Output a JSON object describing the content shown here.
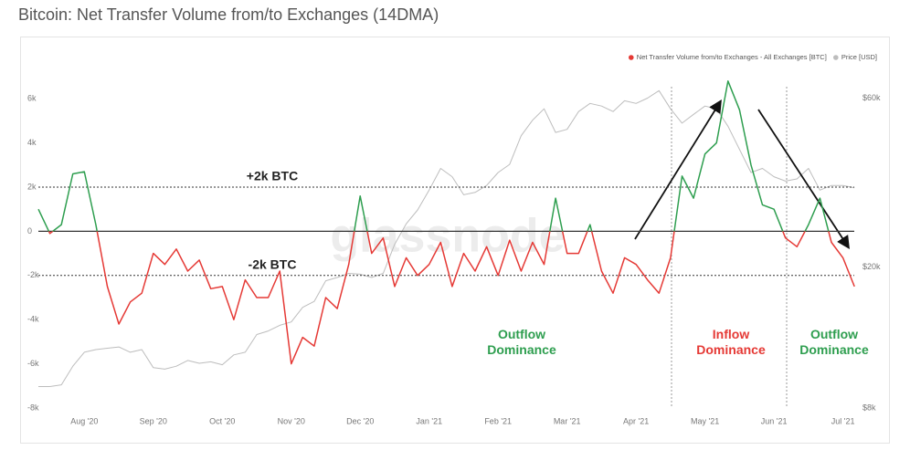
{
  "chart_data": {
    "type": "line",
    "title": "Bitcoin: Net Transfer Volume from/to Exchanges (14DMA)",
    "watermark": "glassnode",
    "categories": [
      null,
      null,
      null,
      null,
      "Aug '20",
      null,
      null,
      null,
      null,
      null,
      "Sep '20",
      null,
      null,
      null,
      null,
      null,
      "Oct '20",
      null,
      null,
      null,
      null,
      null,
      "Nov '20",
      null,
      null,
      null,
      null,
      null,
      "Dec '20",
      null,
      null,
      null,
      null,
      null,
      "Jan '21",
      null,
      null,
      null,
      null,
      null,
      "Feb '21",
      null,
      null,
      null,
      null,
      null,
      "Mar '21",
      null,
      null,
      null,
      null,
      null,
      "Apr '21",
      null,
      null,
      null,
      null,
      null,
      "May '21",
      null,
      null,
      null,
      null,
      null,
      "Jun '21",
      null,
      null,
      null,
      null,
      null,
      "Jul '21",
      null
    ],
    "series": [
      {
        "name": "Net Transfer Volume from/to Exchanges - All Exchanges [BTC]",
        "color": "#e53935",
        "color_positive": "#2e9e4f",
        "values": [
          1000,
          -100,
          300,
          2600,
          2700,
          300,
          -2500,
          -4200,
          -3200,
          -2800,
          -1000,
          -1500,
          -800,
          -1800,
          -1300,
          -2600,
          -2500,
          -4000,
          -2200,
          -3000,
          -3000,
          -1800,
          -6000,
          -4800,
          -5200,
          -3000,
          -3500,
          -1500,
          1600,
          -1000,
          -300,
          -2500,
          -1200,
          -2000,
          -1500,
          -500,
          -2500,
          -1000,
          -1800,
          -700,
          -2000,
          -400,
          -1800,
          -500,
          -1500,
          1500,
          -1000,
          -1000,
          300,
          -1800,
          -2800,
          -1200,
          -1500,
          -2200,
          -2800,
          -1200,
          2500,
          1500,
          3500,
          4000,
          6800,
          5500,
          3000,
          1200,
          1000,
          -300,
          -700,
          300,
          1500,
          -500,
          -1200,
          -2500
        ]
      },
      {
        "name": "Price [USD]",
        "color": "#bdbdbd",
        "axis": "y2",
        "values": [
          9200,
          9200,
          9300,
          10500,
          11500,
          11700,
          11800,
          11900,
          11500,
          11700,
          10400,
          10300,
          10500,
          10900,
          10700,
          10800,
          10600,
          11300,
          11500,
          12900,
          13200,
          13700,
          14000,
          15400,
          16000,
          18300,
          18700,
          19200,
          19100,
          18700,
          19200,
          23200,
          26500,
          29000,
          33000,
          38000,
          36000,
          32000,
          32500,
          34000,
          37000,
          39000,
          47000,
          52000,
          56000,
          48000,
          49000,
          55000,
          58000,
          57000,
          55000,
          59000,
          58000,
          60000,
          63000,
          56000,
          51000,
          54000,
          57000,
          56000,
          50000,
          43000,
          37000,
          38000,
          36000,
          35000,
          35500,
          38000,
          33000,
          34000,
          34000,
          33500
        ]
      }
    ],
    "ylim": [
      -8000,
      7000
    ],
    "yticks": [
      {
        "value": 6000,
        "label": "6k"
      },
      {
        "value": 4000,
        "label": "4k"
      },
      {
        "value": 2000,
        "label": "2k"
      },
      0,
      {
        "value": -2000,
        "label": "-2k"
      },
      {
        "value": -4000,
        "label": "-4k"
      },
      {
        "value": -6000,
        "label": "-6k"
      },
      {
        "value": -8000,
        "label": "-8k"
      }
    ],
    "y2lim": [
      8000,
      69000
    ],
    "y2log": true,
    "y2ticks": [
      {
        "value": 60000,
        "label": "$60k"
      },
      {
        "value": 20000,
        "label": "$20k"
      },
      {
        "value": 8000,
        "label": "$8k"
      }
    ],
    "reference_lines": [
      {
        "value": 2000,
        "label": "+2k BTC"
      },
      {
        "value": -2000,
        "label": "-2k BTC"
      }
    ],
    "annotations": [
      {
        "text": "Outflow Dominance",
        "color": "#2e9e4f"
      },
      {
        "text": "Inflow Dominance",
        "color": "#e53935"
      },
      {
        "text": "Outflow Dominance",
        "color": "#2e9e4f"
      }
    ],
    "legend": "top-right"
  }
}
